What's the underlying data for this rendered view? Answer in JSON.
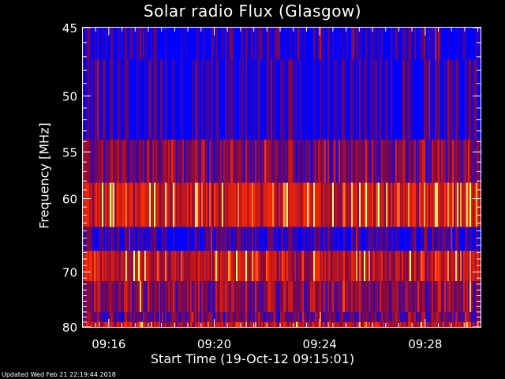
{
  "chart_data": {
    "type": "heatmap",
    "title": "Solar radio Flux (Glasgow)",
    "xlabel": "Start Time (19-Oct-12 09:15:01)",
    "ylabel": "Frequency [MHz]",
    "footer": "Updated Wed Feb 21 22:19:44 2018",
    "x_ticks": [
      "09:16",
      "09:20",
      "09:24",
      "09:28"
    ],
    "x_tick_minutes": [
      16,
      20,
      24,
      28
    ],
    "xlim_minutes": [
      15.0167,
      30.1
    ],
    "y_ticks": [
      45,
      50,
      55,
      60,
      70,
      80
    ],
    "ylim": [
      45,
      80
    ],
    "y_reciprocal": true,
    "colors": {
      "background": "#000000",
      "low": "#0000ff",
      "mid": "#8b0a3a",
      "high": "#ff2a00",
      "peak": "#ffff80",
      "axis": "#ffffff"
    },
    "bands": [
      {
        "from": 45,
        "to": 47.2,
        "level": 0.05
      },
      {
        "from": 47.2,
        "to": 53.8,
        "level": 0.08
      },
      {
        "from": 53.8,
        "to": 58.2,
        "level": 0.35
      },
      {
        "from": 58.2,
        "to": 63.5,
        "level": 0.7
      },
      {
        "from": 63.5,
        "to": 66.8,
        "level": 0.12
      },
      {
        "from": 66.8,
        "to": 71.5,
        "level": 0.62
      },
      {
        "from": 71.5,
        "to": 77.0,
        "level": 0.42
      },
      {
        "from": 77.0,
        "to": 79.0,
        "level": 0.32
      },
      {
        "from": 79.0,
        "to": 80,
        "level": 0.6
      }
    ]
  }
}
